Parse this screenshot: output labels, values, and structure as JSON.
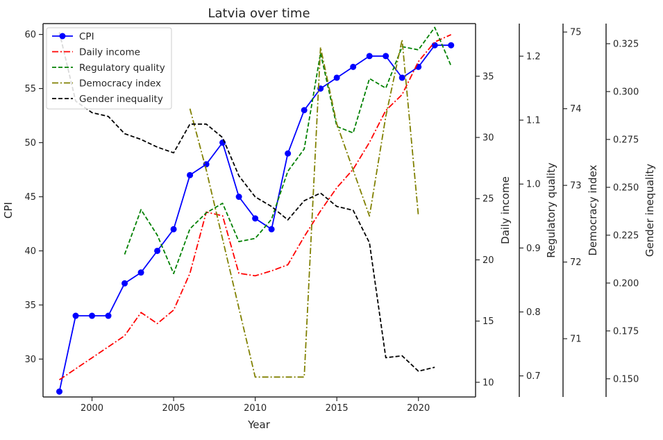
{
  "chart_data": {
    "type": "line",
    "title": "Latvia over time",
    "xlabel": "Year",
    "xlim": [
      1997,
      2023.5
    ],
    "xticks": [
      2000,
      2005,
      2010,
      2015,
      2020
    ],
    "legend_position": "top-left",
    "grid": false,
    "axes": [
      {
        "id": "cpi",
        "label": "CPI",
        "side": "left",
        "ylim": [
          26.5,
          61.0
        ],
        "ticks": [
          30,
          35,
          40,
          45,
          50,
          55,
          60
        ],
        "tick_labels": [
          "30",
          "35",
          "40",
          "45",
          "50",
          "55",
          "60"
        ]
      },
      {
        "id": "income",
        "label": "Daily income",
        "side": "right",
        "ylim": [
          8.8,
          39.3
        ],
        "ticks": [
          10,
          15,
          20,
          25,
          30,
          35
        ],
        "tick_labels": [
          "10",
          "15",
          "20",
          "25",
          "30",
          "35"
        ]
      },
      {
        "id": "regulatory",
        "label": "Regulatory quality",
        "side": "right",
        "ylim": [
          0.667,
          1.251
        ],
        "ticks": [
          0.7,
          0.8,
          0.9,
          1.0,
          1.1,
          1.2
        ],
        "tick_labels": [
          "0.7",
          "0.8",
          "0.9",
          "1.0",
          "1.1",
          "1.2"
        ]
      },
      {
        "id": "democracy",
        "label": "Democracy index",
        "side": "right",
        "ylim": [
          70.24,
          75.11
        ],
        "ticks": [
          71,
          72,
          73,
          74,
          75
        ],
        "tick_labels": [
          "71",
          "72",
          "73",
          "74",
          "75"
        ]
      },
      {
        "id": "gender",
        "label": "Gender inequality",
        "side": "right",
        "ylim": [
          0.1405,
          0.3355
        ],
        "ticks": [
          0.15,
          0.175,
          0.2,
          0.225,
          0.25,
          0.275,
          0.3,
          0.325
        ],
        "tick_labels": [
          "0.150",
          "0.175",
          "0.200",
          "0.225",
          "0.250",
          "0.275",
          "0.300",
          "0.325"
        ]
      }
    ],
    "series": [
      {
        "name": "CPI",
        "axis": "cpi",
        "color": "#0000ff",
        "dash": "",
        "marker": true,
        "x": [
          1998,
          1999,
          2000,
          2001,
          2002,
          2003,
          2004,
          2005,
          2006,
          2007,
          2008,
          2009,
          2010,
          2011,
          2012,
          2013,
          2014,
          2015,
          2016,
          2017,
          2018,
          2019,
          2020,
          2021,
          2022
        ],
        "y": [
          27,
          34,
          34,
          34,
          37,
          38,
          40,
          42,
          47,
          48,
          50,
          45,
          43,
          42,
          49,
          53,
          55,
          56,
          57,
          58,
          58,
          56,
          57,
          59,
          59
        ]
      },
      {
        "name": "Daily income",
        "axis": "income",
        "color": "#ff0000",
        "dash": "9,3,2,3",
        "marker": false,
        "x": [
          1998,
          1999,
          2000,
          2001,
          2002,
          2003,
          2004,
          2005,
          2006,
          2007,
          2008,
          2009,
          2010,
          2011,
          2012,
          2013,
          2014,
          2015,
          2016,
          2017,
          2018,
          2019,
          2020,
          2021,
          2022
        ],
        "y": [
          10.2,
          11.1,
          12.0,
          12.9,
          13.8,
          15.7,
          14.8,
          15.9,
          18.9,
          23.9,
          23.6,
          18.9,
          18.7,
          19.1,
          19.6,
          21.9,
          24.0,
          25.9,
          27.4,
          29.6,
          32.2,
          33.5,
          36.2,
          37.8,
          38.4
        ]
      },
      {
        "name": "Regulatory quality",
        "axis": "regulatory",
        "color": "#008000",
        "dash": "6,3",
        "marker": false,
        "x": [
          2002,
          2003,
          2004,
          2005,
          2006,
          2007,
          2008,
          2009,
          2010,
          2011,
          2012,
          2013,
          2014,
          2015,
          2016,
          2017,
          2018,
          2019,
          2020,
          2021,
          2022
        ],
        "y": [
          0.89,
          0.96,
          0.92,
          0.86,
          0.93,
          0.955,
          0.97,
          0.91,
          0.915,
          0.945,
          1.02,
          1.055,
          1.205,
          1.09,
          1.08,
          1.165,
          1.15,
          1.215,
          1.21,
          1.245,
          1.185
        ]
      },
      {
        "name": "Democracy index",
        "axis": "democracy",
        "color": "#808000",
        "dash": "9,3,2,3",
        "marker": false,
        "x": [
          2006,
          2007,
          2008,
          2009,
          2010,
          2011,
          2012,
          2013,
          2014,
          2015,
          2016,
          2017,
          2018,
          2019,
          2020
        ],
        "y": [
          74.0,
          73.2,
          72.3,
          71.4,
          70.5,
          70.5,
          70.5,
          70.5,
          74.8,
          73.8,
          73.2,
          72.6,
          73.9,
          74.9,
          72.6
        ]
      },
      {
        "name": "Gender inequality",
        "axis": "gender",
        "color": "#000000",
        "dash": "6,3",
        "marker": false,
        "x": [
          1998,
          1999,
          2000,
          2001,
          2002,
          2003,
          2004,
          2005,
          2006,
          2007,
          2008,
          2009,
          2010,
          2011,
          2012,
          2013,
          2014,
          2015,
          2016,
          2017,
          2018,
          2019,
          2020,
          2021
        ],
        "y": [
          0.331,
          0.295,
          0.289,
          0.287,
          0.278,
          0.275,
          0.271,
          0.268,
          0.283,
          0.283,
          0.276,
          0.256,
          0.245,
          0.24,
          0.233,
          0.243,
          0.247,
          0.24,
          0.238,
          0.221,
          0.161,
          0.162,
          0.154,
          0.156
        ]
      }
    ]
  }
}
